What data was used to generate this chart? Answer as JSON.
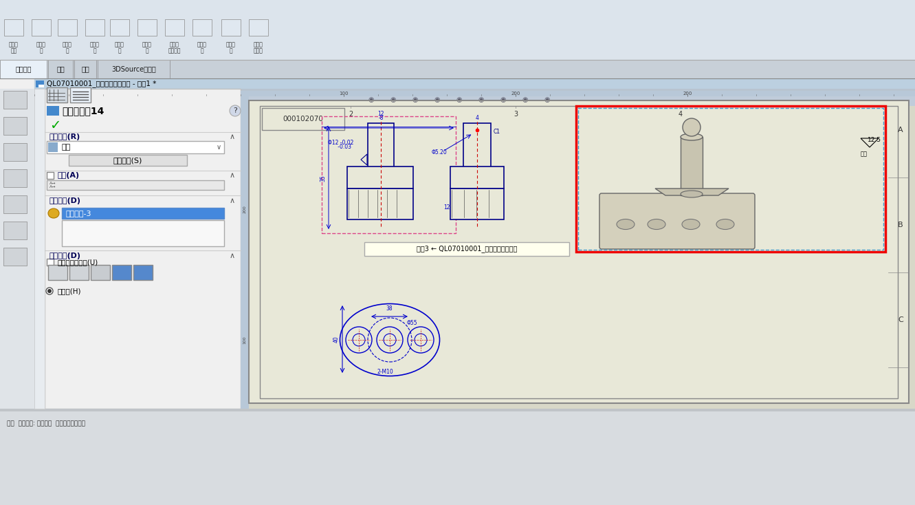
{
  "bg_color": "#f0f0f0",
  "toolbar_bg": "#dce4ec",
  "drawing_area_bg": "#d8d8c8",
  "paper_bg": "#e8e8d8",
  "title_bar_bg": "#bcd0e0",
  "title_bar_text": "QL07010001_单气缸尾部支撑座 - 图纸1 *",
  "panel_title": "工程图视图14",
  "ref_config_label": "参考配置(R)",
  "ref_config_value": "单只",
  "select_button": "选择实体(S)",
  "arrow_label": "箭头(A)",
  "display_state_label": "显示状态(D)",
  "display_state_value": "显示状态-3",
  "display_style_label": "显示样式(D)",
  "use_parent_style": "使用父关系样式(U)",
  "quality_label": "高品质(H)",
  "tab_labels": [
    "视图布局",
    "注解",
    "草图",
    "3DSource零件库"
  ],
  "tooltip_text": "旋转3 ← QL07010001_单气缸尾部支撑座",
  "part_number": "000102070",
  "status_text": "就绪  参考视图: 支持属性  参考模型属性图形"
}
